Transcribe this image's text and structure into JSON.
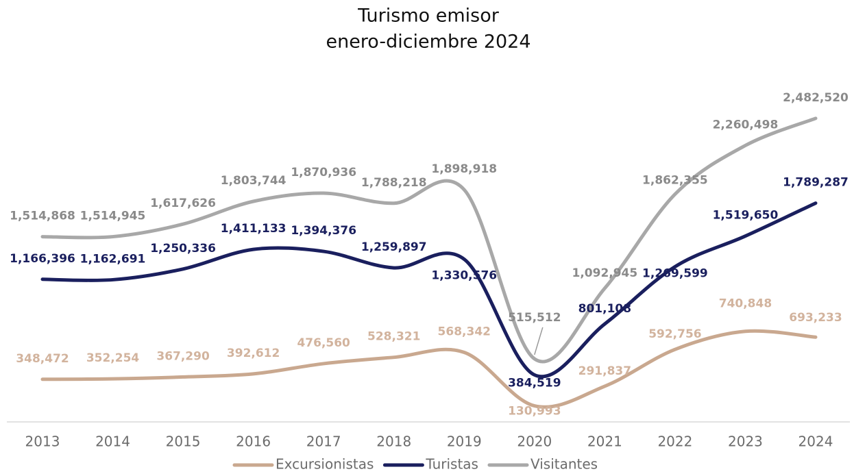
{
  "chart_data": {
    "type": "line",
    "title": "Turismo emisor",
    "subtitle": "enero-diciembre 2024",
    "categories": [
      "2013",
      "2014",
      "2015",
      "2016",
      "2017",
      "2018",
      "2019",
      "2020",
      "2021",
      "2022",
      "2023",
      "2024"
    ],
    "ylim": [
      0,
      2700000
    ],
    "series": [
      {
        "name": "Excursionistas",
        "color": "#c9a88f",
        "label_color": "#d2b39d",
        "values": [
          348472,
          352254,
          367290,
          392612,
          476560,
          528321,
          568342,
          130993,
          291837,
          592756,
          740848,
          693233
        ],
        "value_labels": [
          "348,472",
          "352,254",
          "367,290",
          "392,612",
          "476,560",
          "528,321",
          "568,342",
          "130,993",
          "291,837",
          "592,756",
          "740,848",
          "693,233"
        ]
      },
      {
        "name": "Turistas",
        "color": "#1a1f5e",
        "label_color": "#1a1f5e",
        "values": [
          1166396,
          1162691,
          1250336,
          1411133,
          1394376,
          1259897,
          1330576,
          384519,
          801108,
          1269599,
          1519650,
          1789287
        ],
        "value_labels": [
          "1,166,396",
          "1,162,691",
          "1,250,336",
          "1,411,133",
          "1,394,376",
          "1,259,897",
          "1,330,576",
          "384,519",
          "801,108",
          "1,269,599",
          "1,519,650",
          "1,789,287"
        ]
      },
      {
        "name": "Visitantes",
        "color": "#a8a8a8",
        "label_color": "#8a8a8a",
        "values": [
          1514868,
          1514945,
          1617626,
          1803744,
          1870936,
          1788218,
          1898918,
          515512,
          1092945,
          1862355,
          2260498,
          2482520
        ],
        "value_labels": [
          "1,514,868",
          "1,514,945",
          "1,617,626",
          "1,803,744",
          "1,870,936",
          "1,788,218",
          "1,898,918",
          "515,512",
          "1,092,945",
          "1,862,355",
          "2,260,498",
          "2,482,520"
        ]
      }
    ]
  }
}
